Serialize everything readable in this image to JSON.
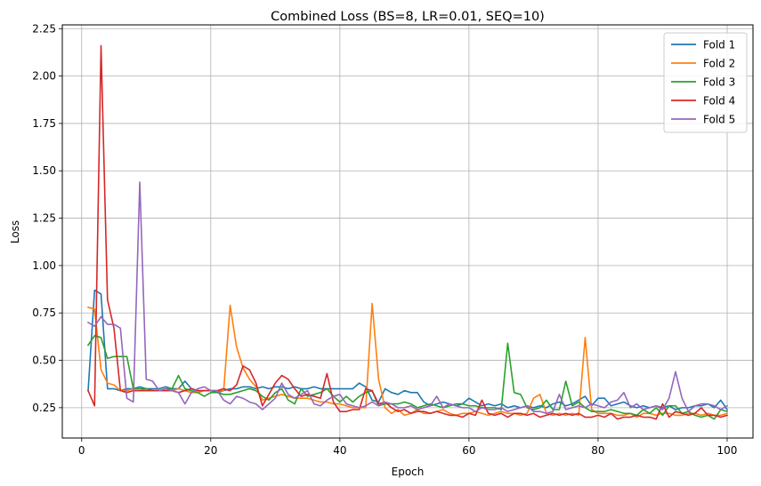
{
  "chart_data": {
    "type": "line",
    "title": "Combined Loss (BS=8, LR=0.01, SEQ=10)",
    "xlabel": "Epoch",
    "ylabel": "Loss",
    "xlim": [
      -3,
      104
    ],
    "ylim": [
      0.09,
      2.27
    ],
    "xticks": [
      0,
      20,
      40,
      60,
      80,
      100
    ],
    "xtick_labels": [
      "0",
      "20",
      "40",
      "60",
      "80",
      "100"
    ],
    "yticks": [
      0.25,
      0.5,
      0.75,
      1.0,
      1.25,
      1.5,
      1.75,
      2.0,
      2.25
    ],
    "ytick_labels": [
      "0.25",
      "0.50",
      "0.75",
      "1.00",
      "1.25",
      "1.50",
      "1.75",
      "2.00",
      "2.25"
    ],
    "grid": true,
    "legend_position": "top-right",
    "x": [
      1,
      2,
      3,
      4,
      5,
      6,
      7,
      8,
      9,
      10,
      11,
      12,
      13,
      14,
      15,
      16,
      17,
      18,
      19,
      20,
      21,
      22,
      23,
      24,
      25,
      26,
      27,
      28,
      29,
      30,
      31,
      32,
      33,
      34,
      35,
      36,
      37,
      38,
      39,
      40,
      41,
      42,
      43,
      44,
      45,
      46,
      47,
      48,
      49,
      50,
      51,
      52,
      53,
      54,
      55,
      56,
      57,
      58,
      59,
      60,
      61,
      62,
      63,
      64,
      65,
      66,
      67,
      68,
      69,
      70,
      71,
      72,
      73,
      74,
      75,
      76,
      77,
      78,
      79,
      80,
      81,
      82,
      83,
      84,
      85,
      86,
      87,
      88,
      89,
      90,
      91,
      92,
      93,
      94,
      95,
      96,
      97,
      98,
      99,
      100
    ],
    "series": [
      {
        "name": "Fold 1",
        "color": "#1f77b4",
        "values": [
          0.34,
          0.87,
          0.85,
          0.35,
          0.35,
          0.34,
          0.35,
          0.35,
          0.36,
          0.35,
          0.35,
          0.35,
          0.36,
          0.35,
          0.35,
          0.39,
          0.35,
          0.34,
          0.34,
          0.34,
          0.33,
          0.34,
          0.35,
          0.35,
          0.36,
          0.36,
          0.35,
          0.36,
          0.35,
          0.36,
          0.36,
          0.35,
          0.36,
          0.35,
          0.35,
          0.36,
          0.35,
          0.35,
          0.35,
          0.35,
          0.35,
          0.35,
          0.38,
          0.36,
          0.29,
          0.28,
          0.35,
          0.33,
          0.32,
          0.34,
          0.33,
          0.33,
          0.28,
          0.26,
          0.27,
          0.28,
          0.27,
          0.26,
          0.27,
          0.3,
          0.28,
          0.26,
          0.27,
          0.26,
          0.27,
          0.25,
          0.26,
          0.25,
          0.26,
          0.25,
          0.26,
          0.25,
          0.27,
          0.28,
          0.26,
          0.27,
          0.29,
          0.31,
          0.26,
          0.3,
          0.3,
          0.26,
          0.27,
          0.28,
          0.26,
          0.25,
          0.26,
          0.25,
          0.26,
          0.25,
          0.26,
          0.24,
          0.25,
          0.25,
          0.26,
          0.26,
          0.27,
          0.25,
          0.29,
          0.24
        ]
      },
      {
        "name": "Fold 2",
        "color": "#ff7f0e",
        "values": [
          0.78,
          0.77,
          0.45,
          0.38,
          0.37,
          0.34,
          0.34,
          0.35,
          0.35,
          0.34,
          0.34,
          0.34,
          0.34,
          0.34,
          0.35,
          0.34,
          0.33,
          0.33,
          0.34,
          0.34,
          0.34,
          0.34,
          0.79,
          0.57,
          0.46,
          0.4,
          0.36,
          0.29,
          0.3,
          0.31,
          0.32,
          0.31,
          0.3,
          0.3,
          0.3,
          0.29,
          0.28,
          0.28,
          0.27,
          0.27,
          0.26,
          0.25,
          0.25,
          0.25,
          0.8,
          0.4,
          0.25,
          0.22,
          0.24,
          0.21,
          0.22,
          0.24,
          0.22,
          0.22,
          0.23,
          0.24,
          0.22,
          0.21,
          0.22,
          0.22,
          0.23,
          0.22,
          0.21,
          0.22,
          0.23,
          0.22,
          0.22,
          0.21,
          0.22,
          0.3,
          0.32,
          0.22,
          0.21,
          0.22,
          0.21,
          0.22,
          0.21,
          0.62,
          0.24,
          0.22,
          0.22,
          0.22,
          0.21,
          0.21,
          0.22,
          0.2,
          0.22,
          0.22,
          0.21,
          0.22,
          0.22,
          0.21,
          0.21,
          0.22,
          0.22,
          0.21,
          0.22,
          0.21,
          0.21,
          0.22
        ]
      },
      {
        "name": "Fold 3",
        "color": "#2ca02c",
        "values": [
          0.58,
          0.63,
          0.62,
          0.51,
          0.52,
          0.52,
          0.52,
          0.35,
          0.35,
          0.35,
          0.34,
          0.34,
          0.35,
          0.35,
          0.42,
          0.35,
          0.34,
          0.33,
          0.31,
          0.33,
          0.33,
          0.32,
          0.32,
          0.33,
          0.34,
          0.35,
          0.34,
          0.31,
          0.29,
          0.33,
          0.35,
          0.29,
          0.27,
          0.35,
          0.31,
          0.32,
          0.33,
          0.35,
          0.31,
          0.28,
          0.31,
          0.28,
          0.31,
          0.33,
          0.34,
          0.26,
          0.27,
          0.27,
          0.27,
          0.28,
          0.27,
          0.25,
          0.26,
          0.27,
          0.26,
          0.25,
          0.26,
          0.27,
          0.27,
          0.26,
          0.26,
          0.25,
          0.25,
          0.25,
          0.24,
          0.59,
          0.33,
          0.32,
          0.25,
          0.24,
          0.25,
          0.29,
          0.24,
          0.24,
          0.39,
          0.26,
          0.28,
          0.25,
          0.23,
          0.23,
          0.23,
          0.24,
          0.23,
          0.22,
          0.22,
          0.21,
          0.24,
          0.22,
          0.25,
          0.21,
          0.26,
          0.26,
          0.22,
          0.23,
          0.21,
          0.2,
          0.21,
          0.19,
          0.24,
          0.23
        ]
      },
      {
        "name": "Fold 4",
        "color": "#d62728",
        "values": [
          0.34,
          0.26,
          2.16,
          0.82,
          0.67,
          0.34,
          0.33,
          0.34,
          0.34,
          0.34,
          0.34,
          0.34,
          0.34,
          0.34,
          0.33,
          0.34,
          0.35,
          0.34,
          0.34,
          0.34,
          0.34,
          0.35,
          0.34,
          0.37,
          0.47,
          0.45,
          0.38,
          0.26,
          0.32,
          0.38,
          0.42,
          0.4,
          0.35,
          0.31,
          0.32,
          0.31,
          0.3,
          0.43,
          0.28,
          0.23,
          0.23,
          0.24,
          0.24,
          0.35,
          0.34,
          0.27,
          0.28,
          0.25,
          0.23,
          0.24,
          0.22,
          0.23,
          0.23,
          0.22,
          0.23,
          0.22,
          0.21,
          0.21,
          0.2,
          0.22,
          0.21,
          0.29,
          0.22,
          0.21,
          0.22,
          0.2,
          0.22,
          0.22,
          0.21,
          0.22,
          0.2,
          0.21,
          0.22,
          0.21,
          0.22,
          0.21,
          0.22,
          0.2,
          0.2,
          0.21,
          0.2,
          0.22,
          0.19,
          0.2,
          0.2,
          0.21,
          0.2,
          0.2,
          0.19,
          0.27,
          0.2,
          0.23,
          0.22,
          0.21,
          0.22,
          0.25,
          0.21,
          0.21,
          0.2,
          0.21
        ]
      },
      {
        "name": "Fold 5",
        "color": "#9467bd",
        "values": [
          0.7,
          0.68,
          0.73,
          0.69,
          0.69,
          0.67,
          0.3,
          0.28,
          1.44,
          0.4,
          0.39,
          0.34,
          0.35,
          0.34,
          0.33,
          0.27,
          0.33,
          0.35,
          0.36,
          0.34,
          0.34,
          0.29,
          0.27,
          0.31,
          0.3,
          0.28,
          0.27,
          0.24,
          0.27,
          0.3,
          0.38,
          0.32,
          0.3,
          0.32,
          0.34,
          0.27,
          0.26,
          0.29,
          0.31,
          0.32,
          0.27,
          0.26,
          0.25,
          0.26,
          0.28,
          0.26,
          0.28,
          0.27,
          0.25,
          0.25,
          0.26,
          0.24,
          0.25,
          0.26,
          0.31,
          0.25,
          0.27,
          0.26,
          0.25,
          0.25,
          0.23,
          0.25,
          0.24,
          0.24,
          0.25,
          0.23,
          0.24,
          0.25,
          0.26,
          0.23,
          0.23,
          0.22,
          0.23,
          0.32,
          0.24,
          0.25,
          0.26,
          0.25,
          0.27,
          0.26,
          0.25,
          0.28,
          0.29,
          0.33,
          0.25,
          0.27,
          0.24,
          0.25,
          0.26,
          0.24,
          0.3,
          0.44,
          0.3,
          0.23,
          0.26,
          0.27,
          0.27,
          0.26,
          0.24,
          0.26
        ]
      }
    ]
  }
}
